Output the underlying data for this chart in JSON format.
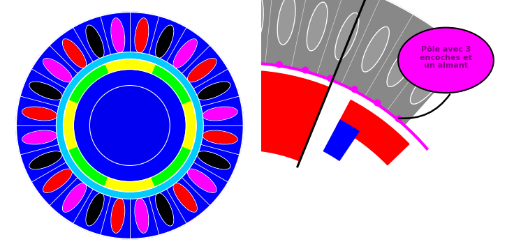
{
  "left_bg": "#00FFFF",
  "right_bg": "#FF00FF",
  "stator_color": "#0000FF",
  "rotor_color": "#0000FF",
  "slot_colors": [
    "#FF00FF",
    "#000000",
    "#FF0000",
    "#FF00FF",
    "#000000",
    "#FF0000",
    "#FF00FF",
    "#000000",
    "#FF0000",
    "#FF00FF",
    "#000000",
    "#FF0000",
    "#FF00FF",
    "#000000",
    "#FF0000",
    "#FF00FF",
    "#000000",
    "#FF0000",
    "#FF00FF",
    "#000000",
    "#FF0000",
    "#FF00FF",
    "#000000",
    "#FF0000"
  ],
  "magnet_colors_rotor": [
    "#FFFF00",
    "#00FF00",
    "#FFFF00",
    "#00FF00",
    "#FFFF00",
    "#00FF00",
    "#FFFF00",
    "#00FF00"
  ],
  "annotation_text": "Pôle avec 3\nencoches et\nun aimant",
  "ann_color": "#800080"
}
